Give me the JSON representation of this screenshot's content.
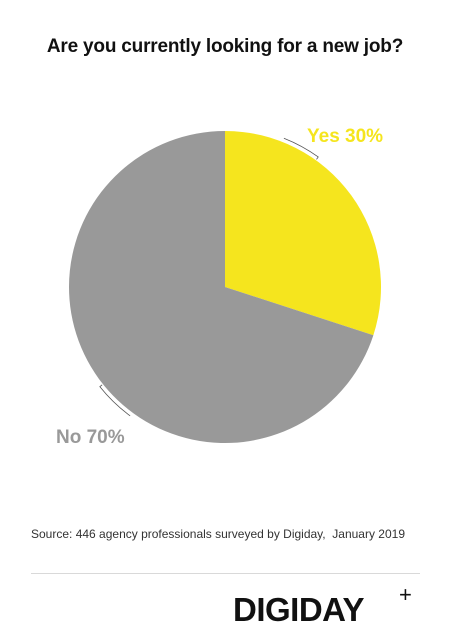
{
  "chart_data": {
    "type": "pie",
    "title": "Are you currently looking for a new job?",
    "slices": [
      {
        "label": "Yes",
        "value": 30,
        "display": "Yes 30%",
        "color": "#f5e51e",
        "label_color": "#f5e51e"
      },
      {
        "label": "No",
        "value": 70,
        "display": "No 70%",
        "color": "#999999",
        "label_color": "#999999"
      }
    ],
    "start_angle_deg": 0,
    "direction": "clockwise"
  },
  "source": "Source: 446 agency professionals surveyed by Digiday,  January 2019",
  "logo": {
    "wordmark": "DIGIDAY",
    "plus": "+"
  }
}
